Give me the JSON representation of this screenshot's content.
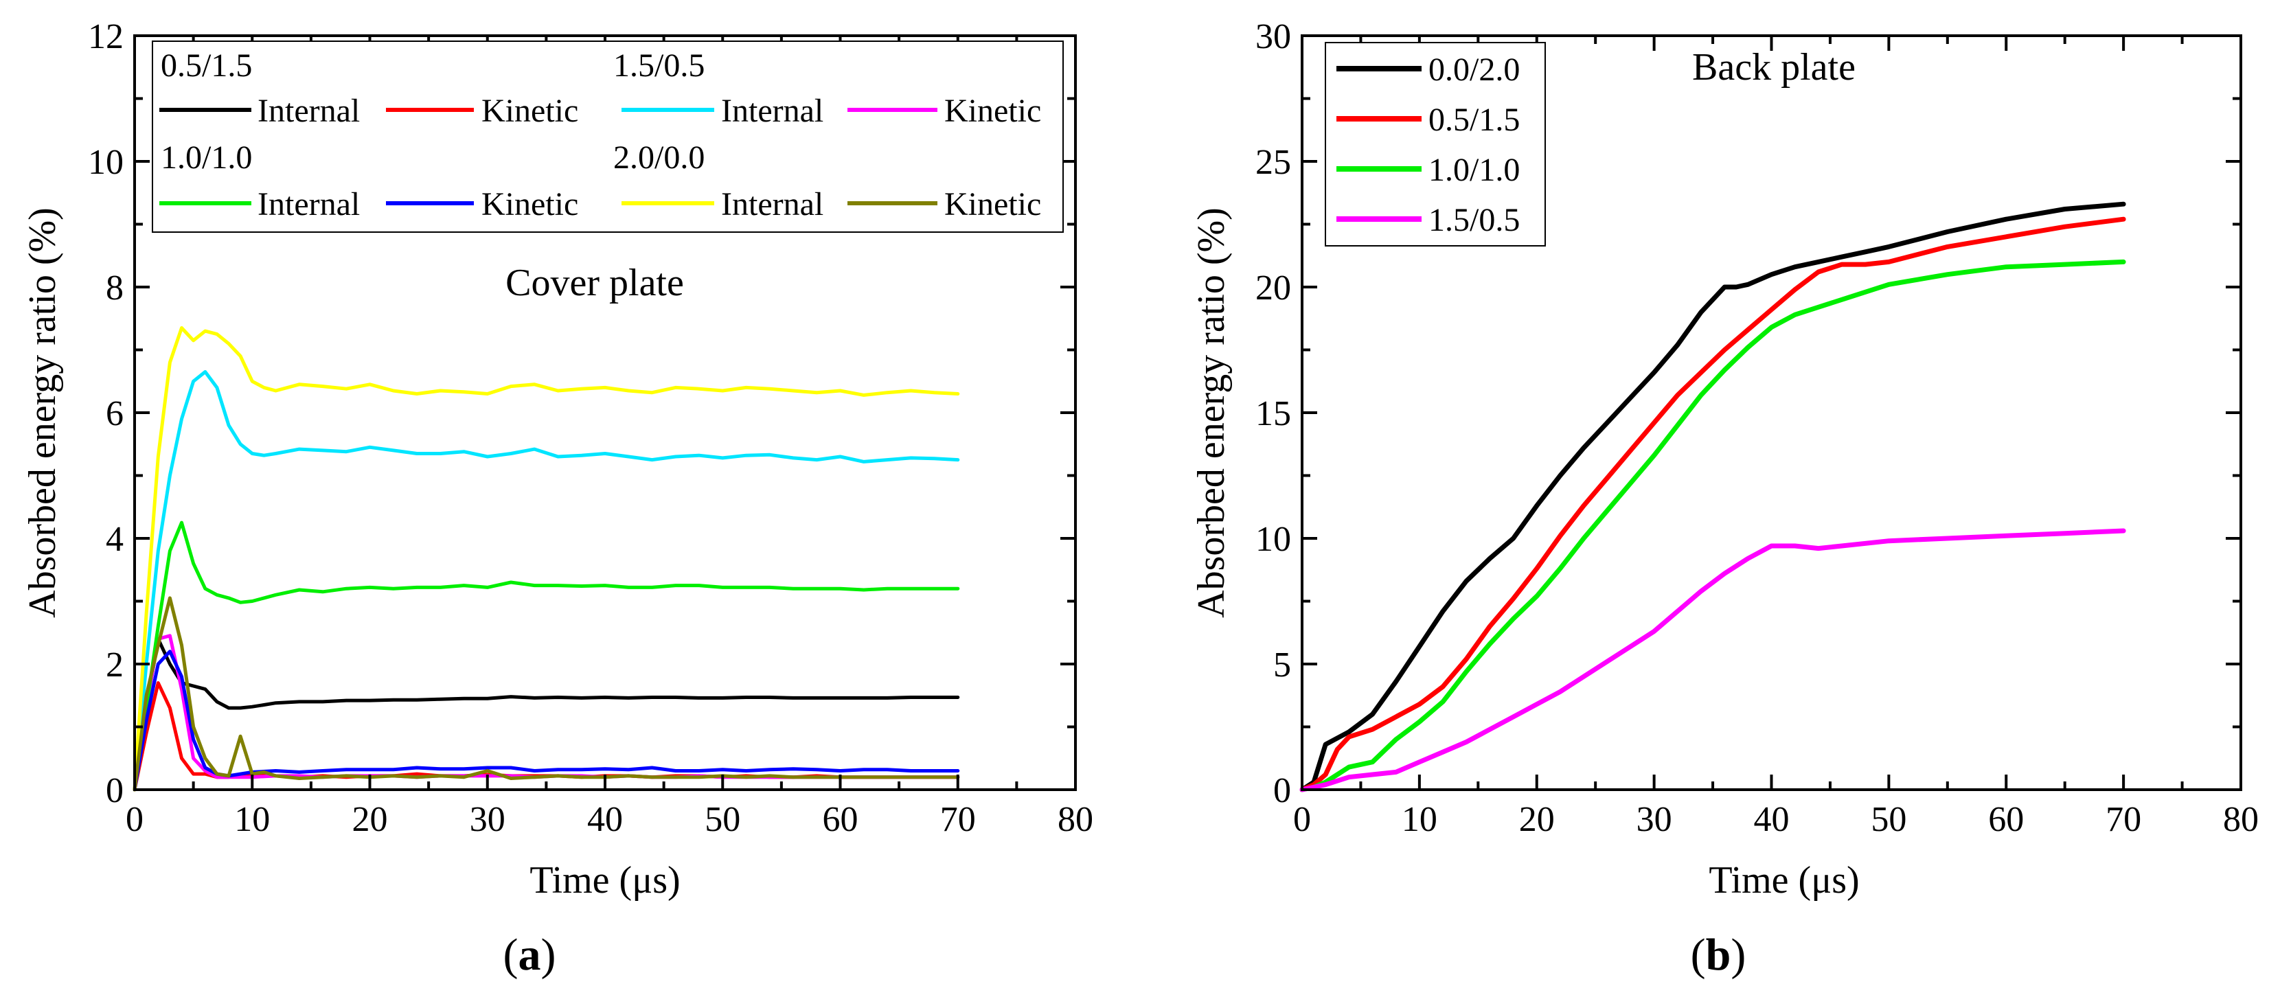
{
  "chart_data": [
    {
      "type": "line",
      "panel_label": "(a)",
      "panel_label_parts": {
        "open": "(",
        "letter": "a",
        "close": ")"
      },
      "annotation": "Cover plate",
      "xlabel": "Time (μs)",
      "ylabel": "Absorbed energy ratio (%)",
      "xlim": [
        0,
        80
      ],
      "ylim": [
        0,
        12
      ],
      "xticks": [
        "0",
        "10",
        "20",
        "30",
        "40",
        "50",
        "60",
        "70",
        "80"
      ],
      "yticks": [
        "0",
        "2",
        "4",
        "6",
        "8",
        "10",
        "12"
      ],
      "legend_position": "top",
      "legend_groups": [
        {
          "title": "0.5/1.5",
          "entries": [
            {
              "label": "Internal",
              "color": "#000000"
            },
            {
              "label": "Kinetic",
              "color": "#ff0000"
            }
          ]
        },
        {
          "title": "1.5/0.5",
          "entries": [
            {
              "label": "Internal",
              "color": "#00e5ff"
            },
            {
              "label": "Kinetic",
              "color": "#ff00ff"
            }
          ]
        },
        {
          "title": "1.0/1.0",
          "entries": [
            {
              "label": "Internal",
              "color": "#00ee00"
            },
            {
              "label": "Kinetic",
              "color": "#0000ff"
            }
          ]
        },
        {
          "title": "2.0/0.0",
          "entries": [
            {
              "label": "Internal",
              "color": "#ffff00"
            },
            {
              "label": "Kinetic",
              "color": "#808000"
            }
          ]
        }
      ],
      "series": [
        {
          "name": "0.5/1.5 Internal",
          "color": "#000000",
          "x": [
            0,
            1,
            2,
            3,
            4,
            5,
            6,
            7,
            8,
            9,
            10,
            11,
            12,
            14,
            16,
            18,
            20,
            22,
            24,
            26,
            28,
            30,
            32,
            34,
            36,
            38,
            40,
            42,
            44,
            46,
            48,
            50,
            52,
            54,
            56,
            58,
            60,
            62,
            64,
            66,
            68,
            70
          ],
          "y": [
            0,
            1.3,
            2.4,
            2.0,
            1.7,
            1.65,
            1.6,
            1.4,
            1.3,
            1.3,
            1.32,
            1.35,
            1.38,
            1.4,
            1.4,
            1.42,
            1.42,
            1.43,
            1.43,
            1.44,
            1.45,
            1.45,
            1.48,
            1.46,
            1.47,
            1.46,
            1.47,
            1.46,
            1.47,
            1.47,
            1.46,
            1.46,
            1.47,
            1.47,
            1.46,
            1.46,
            1.46,
            1.46,
            1.46,
            1.47,
            1.47,
            1.47
          ]
        },
        {
          "name": "0.5/1.5 Kinetic",
          "color": "#ff0000",
          "x": [
            0,
            1,
            2,
            3,
            4,
            5,
            6,
            7,
            8,
            10,
            12,
            14,
            16,
            18,
            20,
            22,
            24,
            26,
            28,
            30,
            32,
            34,
            36,
            38,
            40,
            42,
            44,
            46,
            48,
            50,
            52,
            54,
            56,
            58,
            60,
            62,
            64,
            66,
            68,
            70
          ],
          "y": [
            0,
            0.9,
            1.7,
            1.3,
            0.5,
            0.25,
            0.25,
            0.2,
            0.2,
            0.25,
            0.22,
            0.2,
            0.22,
            0.2,
            0.22,
            0.22,
            0.25,
            0.22,
            0.22,
            0.24,
            0.22,
            0.22,
            0.22,
            0.2,
            0.22,
            0.22,
            0.2,
            0.22,
            0.22,
            0.2,
            0.22,
            0.2,
            0.2,
            0.22,
            0.2,
            0.2,
            0.2,
            0.2,
            0.2,
            0.2
          ]
        },
        {
          "name": "1.5/0.5 Internal",
          "color": "#00e5ff",
          "x": [
            0,
            1,
            2,
            3,
            4,
            5,
            6,
            7,
            8,
            9,
            10,
            11,
            12,
            14,
            16,
            18,
            20,
            22,
            24,
            26,
            28,
            30,
            32,
            34,
            36,
            38,
            40,
            42,
            44,
            46,
            48,
            50,
            52,
            54,
            56,
            58,
            60,
            62,
            64,
            66,
            68,
            70
          ],
          "y": [
            0,
            2.0,
            3.8,
            5.0,
            5.9,
            6.5,
            6.65,
            6.4,
            5.8,
            5.5,
            5.35,
            5.32,
            5.35,
            5.42,
            5.4,
            5.38,
            5.45,
            5.4,
            5.35,
            5.35,
            5.38,
            5.3,
            5.35,
            5.42,
            5.3,
            5.32,
            5.35,
            5.3,
            5.25,
            5.3,
            5.32,
            5.28,
            5.32,
            5.33,
            5.28,
            5.25,
            5.3,
            5.22,
            5.25,
            5.28,
            5.27,
            5.25
          ]
        },
        {
          "name": "1.5/0.5 Kinetic",
          "color": "#ff00ff",
          "x": [
            0,
            1,
            2,
            3,
            4,
            5,
            6,
            7,
            8,
            10,
            12,
            14,
            16,
            18,
            20,
            22,
            24,
            26,
            28,
            30,
            32,
            34,
            36,
            38,
            40,
            42,
            44,
            46,
            48,
            50,
            52,
            54,
            56,
            58,
            60,
            62,
            64,
            66,
            68,
            70
          ],
          "y": [
            0,
            1.3,
            2.4,
            2.45,
            1.6,
            0.5,
            0.3,
            0.2,
            0.2,
            0.2,
            0.22,
            0.22,
            0.2,
            0.22,
            0.22,
            0.22,
            0.2,
            0.22,
            0.22,
            0.22,
            0.22,
            0.2,
            0.22,
            0.22,
            0.2,
            0.22,
            0.2,
            0.2,
            0.22,
            0.2,
            0.2,
            0.2,
            0.2,
            0.2,
            0.2,
            0.2,
            0.2,
            0.2,
            0.2,
            0.2
          ]
        },
        {
          "name": "1.0/1.0 Internal",
          "color": "#00ee00",
          "x": [
            0,
            1,
            2,
            3,
            4,
            5,
            6,
            7,
            8,
            9,
            10,
            11,
            12,
            14,
            16,
            18,
            20,
            22,
            24,
            26,
            28,
            30,
            32,
            34,
            36,
            38,
            40,
            42,
            44,
            46,
            48,
            50,
            52,
            54,
            56,
            58,
            60,
            62,
            64,
            66,
            68,
            70
          ],
          "y": [
            0,
            1.3,
            2.6,
            3.8,
            4.25,
            3.6,
            3.2,
            3.1,
            3.05,
            2.98,
            3.0,
            3.05,
            3.1,
            3.18,
            3.15,
            3.2,
            3.22,
            3.2,
            3.22,
            3.22,
            3.25,
            3.22,
            3.3,
            3.25,
            3.25,
            3.24,
            3.25,
            3.22,
            3.22,
            3.25,
            3.25,
            3.22,
            3.22,
            3.22,
            3.2,
            3.2,
            3.2,
            3.18,
            3.2,
            3.2,
            3.2,
            3.2
          ]
        },
        {
          "name": "1.0/1.0 Kinetic",
          "color": "#0000ff",
          "x": [
            0,
            1,
            2,
            3,
            4,
            5,
            6,
            7,
            8,
            10,
            12,
            14,
            16,
            18,
            20,
            22,
            24,
            26,
            28,
            30,
            32,
            34,
            36,
            38,
            40,
            42,
            44,
            46,
            48,
            50,
            52,
            54,
            56,
            58,
            60,
            62,
            64,
            66,
            68,
            70
          ],
          "y": [
            0,
            1.1,
            2.0,
            2.2,
            1.8,
            0.8,
            0.35,
            0.25,
            0.22,
            0.28,
            0.3,
            0.28,
            0.3,
            0.32,
            0.32,
            0.32,
            0.35,
            0.33,
            0.33,
            0.35,
            0.35,
            0.3,
            0.32,
            0.32,
            0.33,
            0.32,
            0.35,
            0.3,
            0.3,
            0.32,
            0.3,
            0.32,
            0.33,
            0.32,
            0.3,
            0.32,
            0.32,
            0.3,
            0.3,
            0.3
          ]
        },
        {
          "name": "2.0/0.0 Internal",
          "color": "#ffff00",
          "x": [
            0,
            1,
            2,
            3,
            4,
            5,
            6,
            7,
            8,
            9,
            10,
            11,
            12,
            14,
            16,
            18,
            20,
            22,
            24,
            26,
            28,
            30,
            32,
            34,
            36,
            38,
            40,
            42,
            44,
            46,
            48,
            50,
            52,
            54,
            56,
            58,
            60,
            62,
            64,
            66,
            68,
            70
          ],
          "y": [
            0,
            2.8,
            5.3,
            6.8,
            7.35,
            7.15,
            7.3,
            7.25,
            7.1,
            6.9,
            6.5,
            6.4,
            6.35,
            6.45,
            6.42,
            6.38,
            6.45,
            6.35,
            6.3,
            6.35,
            6.33,
            6.3,
            6.42,
            6.45,
            6.35,
            6.38,
            6.4,
            6.35,
            6.32,
            6.4,
            6.38,
            6.35,
            6.4,
            6.38,
            6.35,
            6.32,
            6.35,
            6.28,
            6.32,
            6.35,
            6.32,
            6.3
          ]
        },
        {
          "name": "2.0/0.0 Kinetic",
          "color": "#808000",
          "x": [
            0,
            1,
            2,
            3,
            4,
            5,
            6,
            7,
            8,
            9,
            10,
            11,
            12,
            14,
            16,
            18,
            20,
            22,
            24,
            26,
            28,
            30,
            32,
            34,
            36,
            38,
            40,
            42,
            44,
            46,
            48,
            50,
            52,
            54,
            56,
            58,
            60,
            62,
            64,
            66,
            68,
            70
          ],
          "y": [
            0,
            1.5,
            2.3,
            3.05,
            2.3,
            1.0,
            0.5,
            0.25,
            0.22,
            0.85,
            0.25,
            0.28,
            0.22,
            0.18,
            0.2,
            0.22,
            0.2,
            0.22,
            0.2,
            0.22,
            0.2,
            0.3,
            0.18,
            0.2,
            0.22,
            0.2,
            0.2,
            0.22,
            0.2,
            0.2,
            0.2,
            0.22,
            0.2,
            0.22,
            0.2,
            0.2,
            0.2,
            0.2,
            0.2,
            0.2,
            0.2,
            0.2
          ]
        }
      ]
    },
    {
      "type": "line",
      "panel_label": "(b)",
      "panel_label_parts": {
        "open": "(",
        "letter": "b",
        "close": ")"
      },
      "annotation": "Back plate",
      "xlabel": "Time (μs)",
      "ylabel": "Absorbed energy ratio (%)",
      "xlim": [
        0,
        80
      ],
      "ylim": [
        0,
        30
      ],
      "xticks": [
        "0",
        "10",
        "20",
        "30",
        "40",
        "50",
        "60",
        "70",
        "80"
      ],
      "yticks": [
        "0",
        "5",
        "10",
        "15",
        "20",
        "25",
        "30"
      ],
      "legend_position": "top-left",
      "series": [
        {
          "name": "0.0/2.0",
          "color": "#000000",
          "x": [
            0,
            1,
            2,
            4,
            6,
            8,
            10,
            12,
            14,
            16,
            18,
            20,
            22,
            24,
            26,
            28,
            30,
            32,
            34,
            36,
            37,
            38,
            40,
            42,
            44,
            46,
            48,
            50,
            55,
            60,
            65,
            70
          ],
          "y": [
            0,
            0.3,
            1.8,
            2.3,
            3.0,
            4.3,
            5.7,
            7.1,
            8.3,
            9.2,
            10.0,
            11.3,
            12.5,
            13.6,
            14.6,
            15.6,
            16.6,
            17.7,
            19.0,
            20.0,
            20.0,
            20.1,
            20.5,
            20.8,
            21.0,
            21.2,
            21.4,
            21.6,
            22.2,
            22.7,
            23.1,
            23.3
          ]
        },
        {
          "name": "0.5/1.5",
          "color": "#ff0000",
          "x": [
            0,
            1,
            2,
            3,
            4,
            6,
            8,
            10,
            12,
            14,
            16,
            18,
            20,
            22,
            24,
            26,
            28,
            30,
            32,
            34,
            36,
            38,
            40,
            42,
            44,
            46,
            48,
            50,
            55,
            60,
            65,
            70
          ],
          "y": [
            0,
            0.2,
            0.6,
            1.6,
            2.1,
            2.4,
            2.9,
            3.4,
            4.1,
            5.2,
            6.5,
            7.6,
            8.8,
            10.1,
            11.3,
            12.4,
            13.5,
            14.6,
            15.7,
            16.6,
            17.5,
            18.3,
            19.1,
            19.9,
            20.6,
            20.9,
            20.9,
            21.0,
            21.6,
            22.0,
            22.4,
            22.7
          ]
        },
        {
          "name": "1.0/1.0",
          "color": "#00ee00",
          "x": [
            0,
            1,
            2,
            3,
            4,
            6,
            8,
            10,
            12,
            14,
            16,
            18,
            20,
            22,
            24,
            26,
            28,
            30,
            32,
            34,
            36,
            38,
            40,
            42,
            44,
            46,
            48,
            50,
            55,
            60,
            65,
            70
          ],
          "y": [
            0,
            0.1,
            0.3,
            0.6,
            0.9,
            1.1,
            2.0,
            2.7,
            3.5,
            4.7,
            5.8,
            6.8,
            7.7,
            8.8,
            10.0,
            11.1,
            12.2,
            13.3,
            14.5,
            15.7,
            16.7,
            17.6,
            18.4,
            18.9,
            19.2,
            19.5,
            19.8,
            20.1,
            20.5,
            20.8,
            20.9,
            21.0
          ]
        },
        {
          "name": "1.5/0.5",
          "color": "#ff00ff",
          "x": [
            0,
            2,
            4,
            6,
            8,
            10,
            12,
            14,
            16,
            18,
            20,
            22,
            24,
            26,
            28,
            30,
            32,
            34,
            36,
            38,
            40,
            42,
            44,
            46,
            50,
            55,
            60,
            65,
            70
          ],
          "y": [
            0,
            0.2,
            0.5,
            0.6,
            0.7,
            1.1,
            1.5,
            1.9,
            2.4,
            2.9,
            3.4,
            3.9,
            4.5,
            5.1,
            5.7,
            6.3,
            7.1,
            7.9,
            8.6,
            9.2,
            9.7,
            9.7,
            9.6,
            9.7,
            9.9,
            10.0,
            10.1,
            10.2,
            10.3
          ]
        }
      ]
    }
  ]
}
